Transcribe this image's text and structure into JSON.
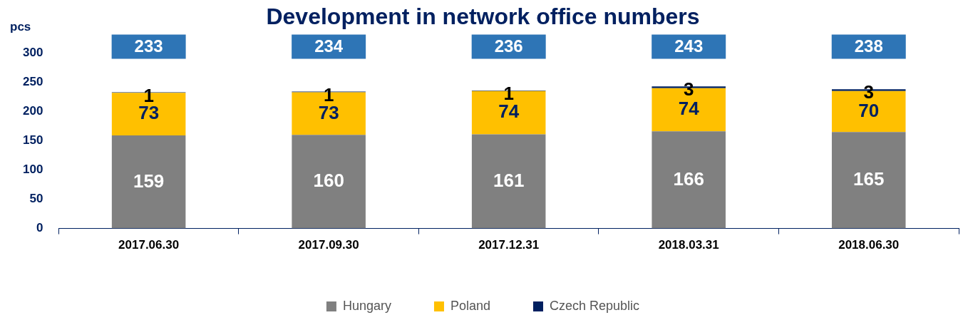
{
  "chart_data": {
    "type": "bar",
    "title": "Development in network office numbers",
    "ylabel": "pcs",
    "categories": [
      "2017.06.30",
      "2017.09.30",
      "2017.12.31",
      "2018.03.31",
      "2018.06.30"
    ],
    "series": [
      {
        "name": "Hungary",
        "color": "#808080",
        "values": [
          159,
          160,
          161,
          166,
          165
        ]
      },
      {
        "name": "Poland",
        "color": "#ffc000",
        "values": [
          73,
          73,
          74,
          74,
          70
        ]
      },
      {
        "name": "Czech Republic",
        "color": "#002060",
        "values": [
          1,
          1,
          1,
          3,
          3
        ]
      }
    ],
    "stacked": true,
    "data_labels": true,
    "totals": [
      "233",
      "234",
      "236",
      "243",
      "238"
    ],
    "ylim": [
      0,
      300
    ],
    "yticks": [
      0,
      50,
      100,
      150,
      200,
      250,
      300
    ],
    "grid": false,
    "legend": "bottom"
  }
}
